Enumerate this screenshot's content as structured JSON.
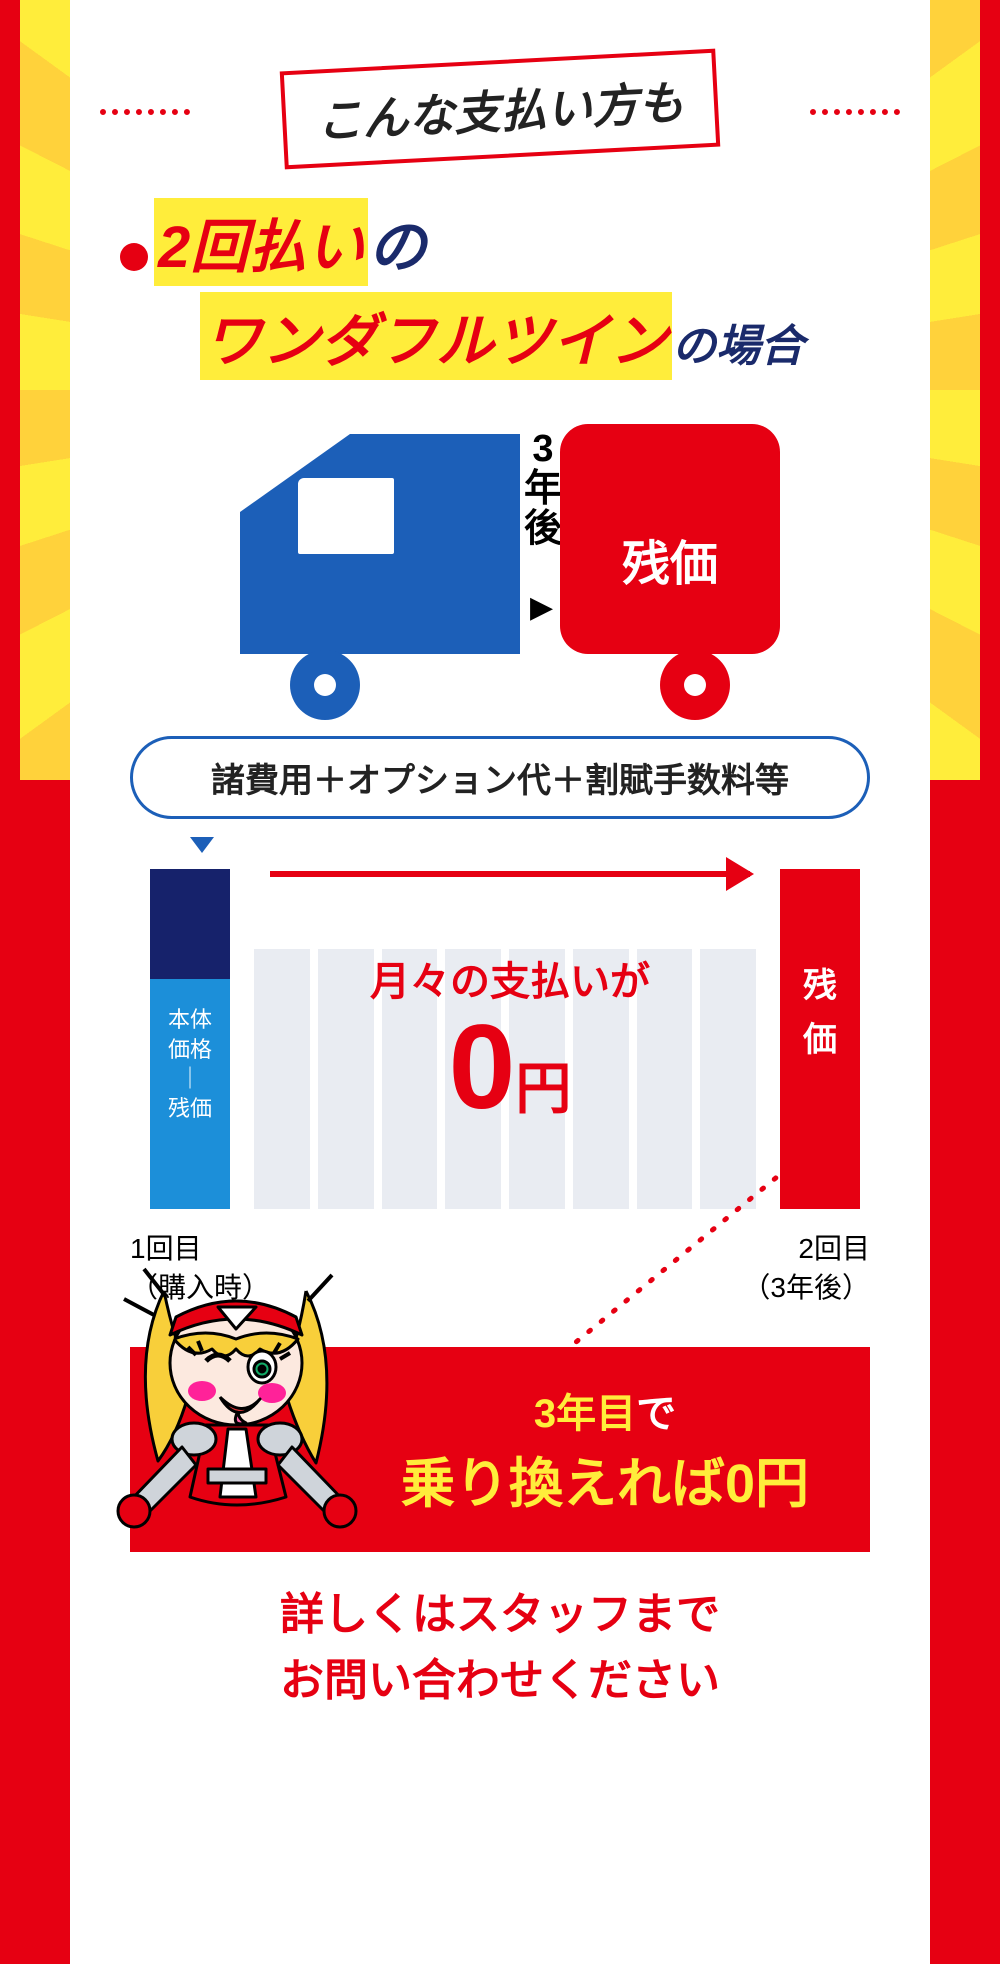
{
  "colors": {
    "red": "#e60012",
    "yellow": "#ffed3b",
    "blue": "#1c5fb8",
    "navy": "#16226b",
    "sky": "#1c8fd9",
    "grey": "#e9ecf2",
    "text": "#222",
    "white": "#fff"
  },
  "header": {
    "label": "こんな支払い方も"
  },
  "title": {
    "line1_hl": "2回払い",
    "line1_tail": "の",
    "line2_hl": "ワンダフルツイン",
    "line2_tail": "の場合"
  },
  "truck": {
    "gap_label": "3年後",
    "trailer_label": "残価",
    "arrow": "▶"
  },
  "costs": {
    "text": "諸費用＋オプション代＋割賦手数料等"
  },
  "chart": {
    "bar1_top_color": "#16226b",
    "bar1_bot_color": "#1c8fd9",
    "bar1_label": "本体\n価格\n｜\n残価",
    "slots_count": 8,
    "slot_color": "#e9ecf2",
    "mid_line1": "月々の支払いが",
    "mid_big": "0",
    "mid_yen": "円",
    "bar2_label": "残\n価",
    "lbl_left_1": "1回目",
    "lbl_left_2": "（購入時）",
    "lbl_right_1": "2回目",
    "lbl_right_2": "（3年後）"
  },
  "callout": {
    "line1_pre": "",
    "line1_em": "3年目",
    "line1_post": "で",
    "line2": "乗り換えれば0円"
  },
  "footer": {
    "line1": "詳しくはスタッフまで",
    "line2": "お問い合わせください"
  }
}
